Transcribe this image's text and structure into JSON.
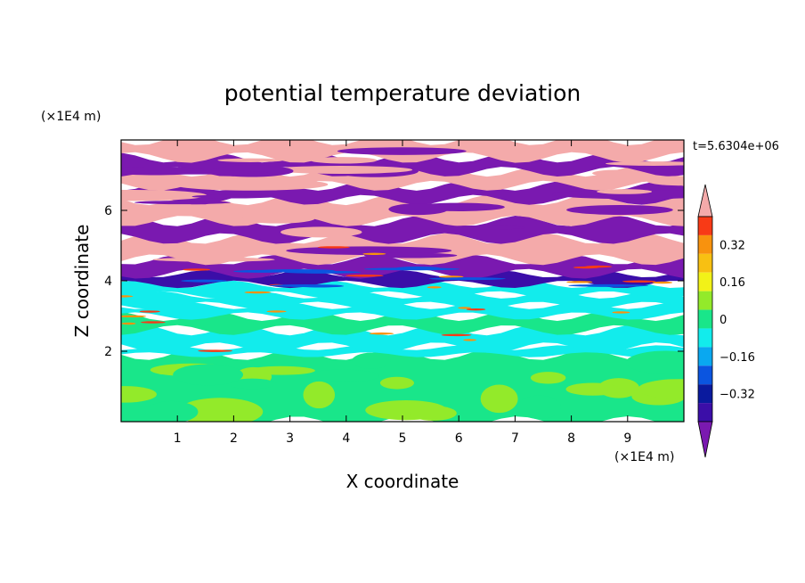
{
  "chart_data": {
    "type": "heatmap",
    "title": "potential temperature deviation",
    "xlabel": "X coordinate",
    "ylabel": "Z coordinate",
    "x_unit": "(×1E4 m)",
    "y_unit": "(×1E4 m)",
    "time_label": "t=5.6304e+06",
    "xlim": [
      0,
      10
    ],
    "ylim": [
      0,
      8
    ],
    "x_ticks": [
      1,
      2,
      3,
      4,
      5,
      6,
      7,
      8,
      9
    ],
    "y_ticks": [
      2,
      4,
      6
    ],
    "colorbar": {
      "levels": [
        -0.48,
        -0.4,
        -0.32,
        -0.24,
        -0.16,
        -0.08,
        0,
        0.08,
        0.16,
        0.24,
        0.32,
        0.4,
        0.48
      ],
      "tick_labels": [
        "0.32",
        "0.16",
        "0",
        "−0.16",
        "−0.32"
      ],
      "tick_values": [
        0.32,
        0.16,
        0,
        -0.16,
        -0.32
      ],
      "colors": [
        "#7a19b0",
        "#3b0ea8",
        "#0a1a9e",
        "#0b55e0",
        "#0aa8f0",
        "#12ecec",
        "#19e68a",
        "#93ea2a",
        "#f2f218",
        "#f8c012",
        "#f8920e",
        "#f83a16",
        "#f4aaaa"
      ],
      "extend": "both"
    },
    "bands": [
      {
        "z0": 0.0,
        "z1": 1.9,
        "value": 0.04
      },
      {
        "z0": 1.9,
        "z1": 2.1,
        "value": -0.12
      },
      {
        "z0": 2.1,
        "z1": 2.6,
        "value": -0.04
      },
      {
        "z0": 2.6,
        "z1": 3.0,
        "value": 0.04
      },
      {
        "z0": 3.0,
        "z1": 3.3,
        "value": -0.04
      },
      {
        "z0": 3.3,
        "z1": 3.6,
        "value": -0.12
      },
      {
        "z0": 3.6,
        "z1": 3.9,
        "value": -0.12
      },
      {
        "z0": 3.9,
        "z1": 4.2,
        "value": -0.4
      },
      {
        "z0": 4.2,
        "z1": 4.6,
        "value": -0.48
      },
      {
        "z0": 4.6,
        "z1": 5.2,
        "value": 0.48
      },
      {
        "z0": 5.2,
        "z1": 5.7,
        "value": -0.48
      },
      {
        "z0": 5.7,
        "z1": 6.3,
        "value": 0.48
      },
      {
        "z0": 6.3,
        "z1": 6.7,
        "value": -0.48
      },
      {
        "z0": 6.7,
        "z1": 7.1,
        "value": 0.48
      },
      {
        "z0": 7.1,
        "z1": 7.5,
        "value": -0.48
      },
      {
        "z0": 7.5,
        "z1": 8.0,
        "value": 0.48
      }
    ]
  }
}
